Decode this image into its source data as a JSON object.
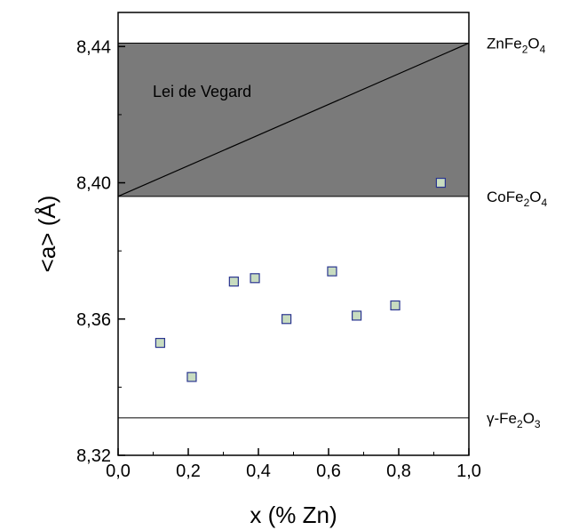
{
  "chart_data": {
    "type": "scatter",
    "xlabel": "x (% Zn)",
    "ylabel": "<a> (Å)",
    "xlim": [
      0.0,
      1.0
    ],
    "ylim": [
      8.32,
      8.45
    ],
    "x_ticks": [
      0.0,
      0.2,
      0.4,
      0.6,
      0.8,
      1.0
    ],
    "x_tick_labels": [
      "0,0",
      "0,2",
      "0,4",
      "0,6",
      "0,8",
      "1,0"
    ],
    "y_ticks": [
      8.32,
      8.36,
      8.4,
      8.44
    ],
    "y_tick_labels": [
      "8,32",
      "8,36",
      "8,40",
      "8,44"
    ],
    "grid": false,
    "marker": "square",
    "marker_fill": "#c8dcc0",
    "marker_edge": "#2a3590",
    "series": [
      {
        "x": [
          0.12,
          0.21,
          0.33,
          0.39,
          0.48,
          0.61,
          0.68,
          0.79,
          0.92
        ],
        "y": [
          8.353,
          8.343,
          8.371,
          8.372,
          8.36,
          8.374,
          8.361,
          8.364,
          8.4
        ]
      }
    ],
    "shaded_region": {
      "y_from": 8.396,
      "y_to": 8.441,
      "color": "#7a7a7a"
    },
    "vegard_line": {
      "x": [
        0.0,
        1.0
      ],
      "y": [
        8.396,
        8.441
      ]
    },
    "reference_lines": [
      {
        "y": 8.441,
        "label_base": "ZnFe",
        "sub1": "2",
        "mid": "O",
        "sub2": "4"
      },
      {
        "y": 8.396,
        "label_base": "CoFe",
        "sub1": "2",
        "mid": "O",
        "sub2": "4"
      },
      {
        "y": 8.331,
        "label_base": "γ-Fe",
        "sub1": "2",
        "mid": "O",
        "sub2": "3"
      }
    ],
    "annotations": [
      {
        "text": "Lei de Vegard"
      }
    ]
  }
}
